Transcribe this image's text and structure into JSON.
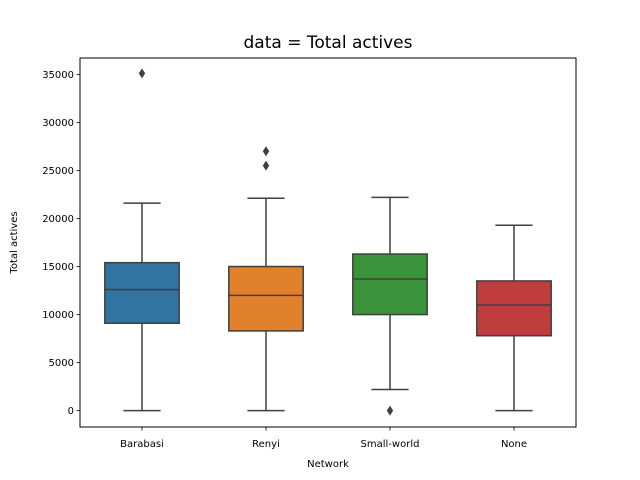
{
  "chart_data": {
    "type": "box",
    "title": "data = Total actives",
    "xlabel": "Network",
    "ylabel": "Total actives",
    "ylim": [
      -1700,
      36700
    ],
    "yticks": [
      0,
      5000,
      10000,
      15000,
      20000,
      25000,
      30000,
      35000
    ],
    "grid": false,
    "categories": [
      "Barabasi",
      "Renyi",
      "Small-world",
      "None"
    ],
    "boxes": [
      {
        "category": "Barabasi",
        "color": "#3274a1",
        "whisker_low": 0,
        "q1": 9100,
        "median": 12600,
        "q3": 15400,
        "whisker_high": 21600,
        "outliers": [
          35100
        ]
      },
      {
        "category": "Renyi",
        "color": "#e1812c",
        "whisker_low": 0,
        "q1": 8300,
        "median": 12000,
        "q3": 15000,
        "whisker_high": 22100,
        "outliers": [
          25500,
          27000
        ]
      },
      {
        "category": "Small-world",
        "color": "#3a923a",
        "whisker_low": 2200,
        "q1": 10000,
        "median": 13700,
        "q3": 16300,
        "whisker_high": 22200,
        "outliers": [
          0
        ]
      },
      {
        "category": "None",
        "color": "#c03d3e",
        "whisker_low": 0,
        "q1": 7800,
        "median": 11000,
        "q3": 13500,
        "whisker_high": 19300,
        "outliers": []
      }
    ]
  }
}
